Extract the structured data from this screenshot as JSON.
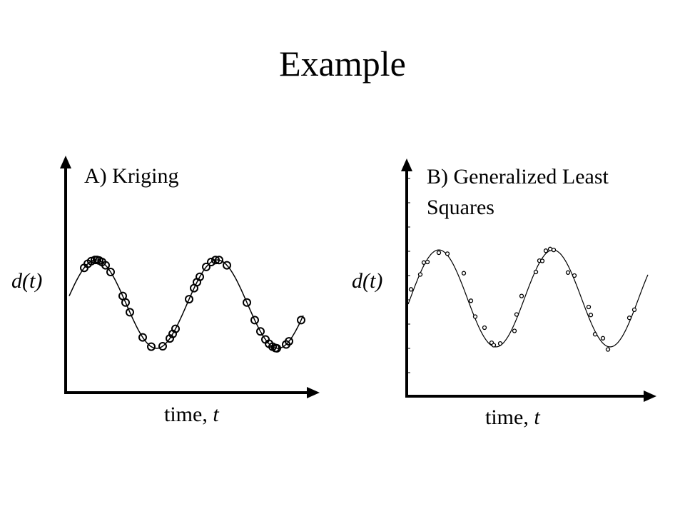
{
  "title": "Example",
  "panels": [
    {
      "label": "A) Kriging",
      "y_label": "d(t)",
      "x_label": "time, ",
      "x_var": "t"
    },
    {
      "label": "B) Generalized Least Squares",
      "y_label": "d(t)",
      "x_label": "time, ",
      "x_var": "t"
    }
  ]
}
